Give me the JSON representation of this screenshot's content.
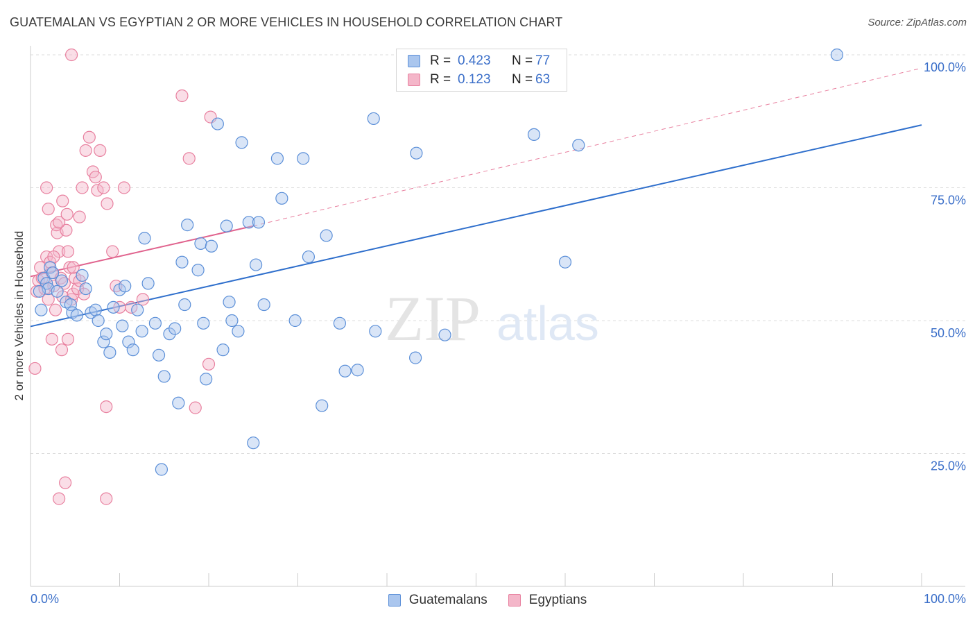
{
  "title": "GUATEMALAN VS EGYPTIAN 2 OR MORE VEHICLES IN HOUSEHOLD CORRELATION CHART",
  "source": "Source: ZipAtlas.com",
  "watermark": {
    "zip": "ZIP",
    "atlas": "atlas"
  },
  "legend": {
    "rows": [
      {
        "r_label": "R =",
        "r_value": "0.423",
        "n_label": "N =",
        "n_value": "77"
      },
      {
        "r_label": "R =",
        "r_value": "0.123",
        "n_label": "N =",
        "n_value": "63"
      }
    ]
  },
  "bottom_legend": [
    "Guatemalans",
    "Egyptians"
  ],
  "colors": {
    "blue_fill": "#aac6ee",
    "blue_stroke": "#5b8fd8",
    "blue_line": "#2f6fcc",
    "pink_fill": "#f4b6c9",
    "pink_stroke": "#e8809f",
    "pink_line": "#e0628d",
    "axis_text": "#3b6fc9",
    "grid": "#dddddd"
  },
  "chart_data": {
    "type": "scatter",
    "title": "GUATEMALAN VS EGYPTIAN 2 OR MORE VEHICLES IN HOUSEHOLD CORRELATION CHART",
    "xlabel": "",
    "ylabel": "2 or more Vehicles in Household",
    "xlim": [
      0,
      100
    ],
    "ylim": [
      0,
      100
    ],
    "x_tick_labels": [
      "0.0%",
      "100.0%"
    ],
    "y_tick_labels": [
      "25.0%",
      "50.0%",
      "75.0%",
      "100.0%"
    ],
    "y_ticks": [
      25,
      50,
      75,
      100
    ],
    "series": [
      {
        "name": "Guatemalans",
        "R": 0.423,
        "N": 77,
        "trend": {
          "x": [
            0,
            100
          ],
          "y": [
            48.9,
            86.8
          ],
          "style": "solid"
        },
        "points": [
          [
            1.2,
            52
          ],
          [
            1.5,
            58
          ],
          [
            1.8,
            57
          ],
          [
            2.0,
            56
          ],
          [
            2.2,
            60
          ],
          [
            2.5,
            59
          ],
          [
            3,
            55.5
          ],
          [
            3.5,
            57.5
          ],
          [
            4,
            53.5
          ],
          [
            4.5,
            53
          ],
          [
            4.7,
            51.5
          ],
          [
            5.2,
            51
          ],
          [
            5.8,
            58.5
          ],
          [
            6.2,
            56
          ],
          [
            6.8,
            51.5
          ],
          [
            7.3,
            52
          ],
          [
            7.6,
            50
          ],
          [
            8.2,
            46
          ],
          [
            8.5,
            47.5
          ],
          [
            8.9,
            44
          ],
          [
            9.3,
            52.5
          ],
          [
            10,
            55.8
          ],
          [
            10.3,
            49
          ],
          [
            10.6,
            56.5
          ],
          [
            11,
            46
          ],
          [
            11.5,
            44.5
          ],
          [
            12,
            52
          ],
          [
            12.5,
            48
          ],
          [
            12.8,
            65.5
          ],
          [
            13.2,
            57
          ],
          [
            14,
            49.5
          ],
          [
            14.4,
            43.5
          ],
          [
            15,
            39.5
          ],
          [
            15.6,
            47.5
          ],
          [
            16.2,
            48.5
          ],
          [
            16.6,
            34.5
          ],
          [
            17,
            61
          ],
          [
            17.3,
            53
          ],
          [
            17.6,
            68
          ],
          [
            18.8,
            59.5
          ],
          [
            19.1,
            64.5
          ],
          [
            19.4,
            49.5
          ],
          [
            19.7,
            39
          ],
          [
            20.3,
            64
          ],
          [
            21,
            87
          ],
          [
            21.6,
            44.5
          ],
          [
            22,
            67.8
          ],
          [
            22.3,
            53.5
          ],
          [
            22.6,
            50
          ],
          [
            23.3,
            48
          ],
          [
            23.7,
            83.5
          ],
          [
            24.5,
            68.5
          ],
          [
            25.3,
            60.5
          ],
          [
            25.6,
            68.5
          ],
          [
            26.2,
            53
          ],
          [
            27.7,
            80.5
          ],
          [
            28.2,
            73
          ],
          [
            29.7,
            50
          ],
          [
            30.6,
            80.5
          ],
          [
            31.2,
            62
          ],
          [
            32.7,
            34
          ],
          [
            33.2,
            66
          ],
          [
            34.7,
            49.5
          ],
          [
            35.3,
            40.5
          ],
          [
            36.7,
            40.7
          ],
          [
            38.5,
            88
          ],
          [
            38.7,
            48
          ],
          [
            43.3,
            81.5
          ],
          [
            43.2,
            43
          ],
          [
            46.5,
            47.3
          ],
          [
            56.5,
            85
          ],
          [
            60,
            61
          ],
          [
            61.5,
            83
          ],
          [
            90.5,
            100
          ],
          [
            14.7,
            22
          ],
          [
            25,
            27
          ],
          [
            1.0,
            55.5
          ]
        ]
      },
      {
        "name": "Egyptians",
        "R": 0.123,
        "N": 63,
        "trend": {
          "x": [
            0,
            25
          ],
          "y": [
            58.3,
            67.8
          ],
          "style": "solid",
          "extended": {
            "x": [
              25,
              100
            ],
            "y": [
              67.8,
              97.5
            ],
            "style": "dashed"
          }
        },
        "points": [
          [
            0.5,
            41
          ],
          [
            0.7,
            55.5
          ],
          [
            0.9,
            57.5
          ],
          [
            1.1,
            60
          ],
          [
            1.3,
            58
          ],
          [
            1.6,
            56
          ],
          [
            1.8,
            62
          ],
          [
            2.0,
            54
          ],
          [
            2.2,
            61
          ],
          [
            2.4,
            59
          ],
          [
            2.6,
            56.5
          ],
          [
            2.8,
            52
          ],
          [
            3.0,
            66.5
          ],
          [
            3.2,
            63
          ],
          [
            3.4,
            58
          ],
          [
            3.6,
            54.5
          ],
          [
            3.8,
            57
          ],
          [
            4.0,
            67
          ],
          [
            4.2,
            63
          ],
          [
            4.4,
            60
          ],
          [
            4.6,
            54
          ],
          [
            4.8,
            55
          ],
          [
            5.0,
            58
          ],
          [
            5.3,
            56
          ],
          [
            5.5,
            69.5
          ],
          [
            5.8,
            75
          ],
          [
            6.2,
            82
          ],
          [
            6.6,
            84.5
          ],
          [
            7.0,
            78
          ],
          [
            7.3,
            77
          ],
          [
            7.5,
            74.5
          ],
          [
            7.8,
            82
          ],
          [
            8.2,
            75
          ],
          [
            8.6,
            72
          ],
          [
            9.2,
            63
          ],
          [
            9.6,
            56.5
          ],
          [
            10.0,
            52.5
          ],
          [
            10.5,
            75
          ],
          [
            11.3,
            52.5
          ],
          [
            12.6,
            54
          ],
          [
            1.8,
            75
          ],
          [
            2.0,
            71
          ],
          [
            2.6,
            62
          ],
          [
            2.9,
            68
          ],
          [
            3.2,
            68.5
          ],
          [
            3.6,
            72.5
          ],
          [
            4.1,
            70
          ],
          [
            4.8,
            60
          ],
          [
            5.5,
            57.5
          ],
          [
            6.0,
            55
          ],
          [
            3.5,
            44.5
          ],
          [
            4.2,
            46.5
          ],
          [
            2.4,
            46.5
          ],
          [
            8.5,
            33.8
          ],
          [
            18.5,
            33.6
          ],
          [
            20.0,
            41.8
          ],
          [
            20.2,
            88.3
          ],
          [
            17.8,
            80.5
          ],
          [
            17.0,
            92.3
          ],
          [
            4.6,
            100
          ],
          [
            3.2,
            16.5
          ],
          [
            3.9,
            19.5
          ],
          [
            8.5,
            16.5
          ]
        ]
      }
    ]
  }
}
